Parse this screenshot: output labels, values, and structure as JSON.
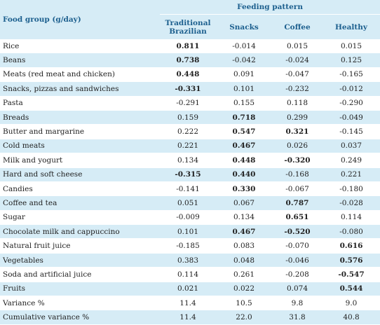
{
  "table": {
    "group_header": "Food group (g/day)",
    "span_header": "Feeding pattern",
    "columns": [
      {
        "line1": "Traditional",
        "line2": "Brazilian"
      },
      {
        "line1": "Snacks",
        "line2": ""
      },
      {
        "line1": "Coffee",
        "line2": ""
      },
      {
        "line1": "Healthy",
        "line2": ""
      }
    ],
    "rows": [
      {
        "label": "Rice",
        "values": [
          "0.811",
          "-0.014",
          "0.015",
          "0.015"
        ],
        "bold": [
          true,
          false,
          false,
          false
        ]
      },
      {
        "label": "Beans",
        "values": [
          "0.738",
          "-0.042",
          "-0.024",
          "0.125"
        ],
        "bold": [
          true,
          false,
          false,
          false
        ]
      },
      {
        "label": "Meats (red meat and chicken)",
        "values": [
          "0.448",
          "0.091",
          "-0.047",
          "-0.165"
        ],
        "bold": [
          true,
          false,
          false,
          false
        ]
      },
      {
        "label": "Snacks, pizzas and sandwiches",
        "values": [
          "-0.331",
          "0.101",
          "-0.232",
          "-0.012"
        ],
        "bold": [
          true,
          false,
          false,
          false
        ]
      },
      {
        "label": "Pasta",
        "values": [
          "-0.291",
          "0.155",
          "0.118",
          "-0.290"
        ],
        "bold": [
          false,
          false,
          false,
          false
        ]
      },
      {
        "label": "Breads",
        "values": [
          "0.159",
          "0.718",
          "0.299",
          "-0.049"
        ],
        "bold": [
          false,
          true,
          false,
          false
        ]
      },
      {
        "label": "Butter and margarine",
        "values": [
          "0.222",
          "0.547",
          "0.321",
          "-0.145"
        ],
        "bold": [
          false,
          true,
          true,
          false
        ]
      },
      {
        "label": "Cold meats",
        "values": [
          "0.221",
          "0.467",
          "0.026",
          "0.037"
        ],
        "bold": [
          false,
          true,
          false,
          false
        ]
      },
      {
        "label": "Milk and yogurt",
        "values": [
          "0.134",
          "0.448",
          "-0.320",
          "0.249"
        ],
        "bold": [
          false,
          true,
          true,
          false
        ]
      },
      {
        "label": "Hard and soft cheese",
        "values": [
          "-0.315",
          "0.440",
          "-0.168",
          "0.221"
        ],
        "bold": [
          true,
          true,
          false,
          false
        ]
      },
      {
        "label": "Candies",
        "values": [
          "-0.141",
          "0.330",
          "-0.067",
          "-0.180"
        ],
        "bold": [
          false,
          true,
          false,
          false
        ]
      },
      {
        "label": "Coffee and tea",
        "values": [
          "0.051",
          "0.067",
          "0.787",
          "-0.028"
        ],
        "bold": [
          false,
          false,
          true,
          false
        ]
      },
      {
        "label": "Sugar",
        "values": [
          "-0.009",
          "0.134",
          "0.651",
          "0.114"
        ],
        "bold": [
          false,
          false,
          true,
          false
        ]
      },
      {
        "label": "Chocolate milk and cappuccino",
        "values": [
          "0.101",
          "0.467",
          "-0.520",
          "-0.080"
        ],
        "bold": [
          false,
          true,
          true,
          false
        ]
      },
      {
        "label": "Natural fruit juice",
        "values": [
          "-0.185",
          "0.083",
          "-0.070",
          "0.616"
        ],
        "bold": [
          false,
          false,
          false,
          true
        ]
      },
      {
        "label": "Vegetables",
        "values": [
          "0.383",
          "0.048",
          "-0.046",
          "0.576"
        ],
        "bold": [
          false,
          false,
          false,
          true
        ]
      },
      {
        "label": "Soda and artificial juice",
        "values": [
          "0.114",
          "0.261",
          "-0.208",
          "-0.547"
        ],
        "bold": [
          false,
          false,
          false,
          true
        ]
      },
      {
        "label": "Fruits",
        "values": [
          "0.021",
          "0.022",
          "0.074",
          "0.544"
        ],
        "bold": [
          false,
          false,
          false,
          true
        ]
      },
      {
        "label": "Variance %",
        "values": [
          "11.4",
          "10.5",
          "9.8",
          "9.0"
        ],
        "bold": [
          false,
          false,
          false,
          false
        ]
      },
      {
        "label": "Cumulative variance %",
        "values": [
          "11.4",
          "22.0",
          "31.8",
          "40.8"
        ],
        "bold": [
          false,
          false,
          false,
          false
        ]
      }
    ]
  },
  "colors": {
    "header_bg": "#d6ecf6",
    "header_text": "#1c5f8e",
    "stripe_bg": "#d6ecf6",
    "body_text": "#222222"
  }
}
